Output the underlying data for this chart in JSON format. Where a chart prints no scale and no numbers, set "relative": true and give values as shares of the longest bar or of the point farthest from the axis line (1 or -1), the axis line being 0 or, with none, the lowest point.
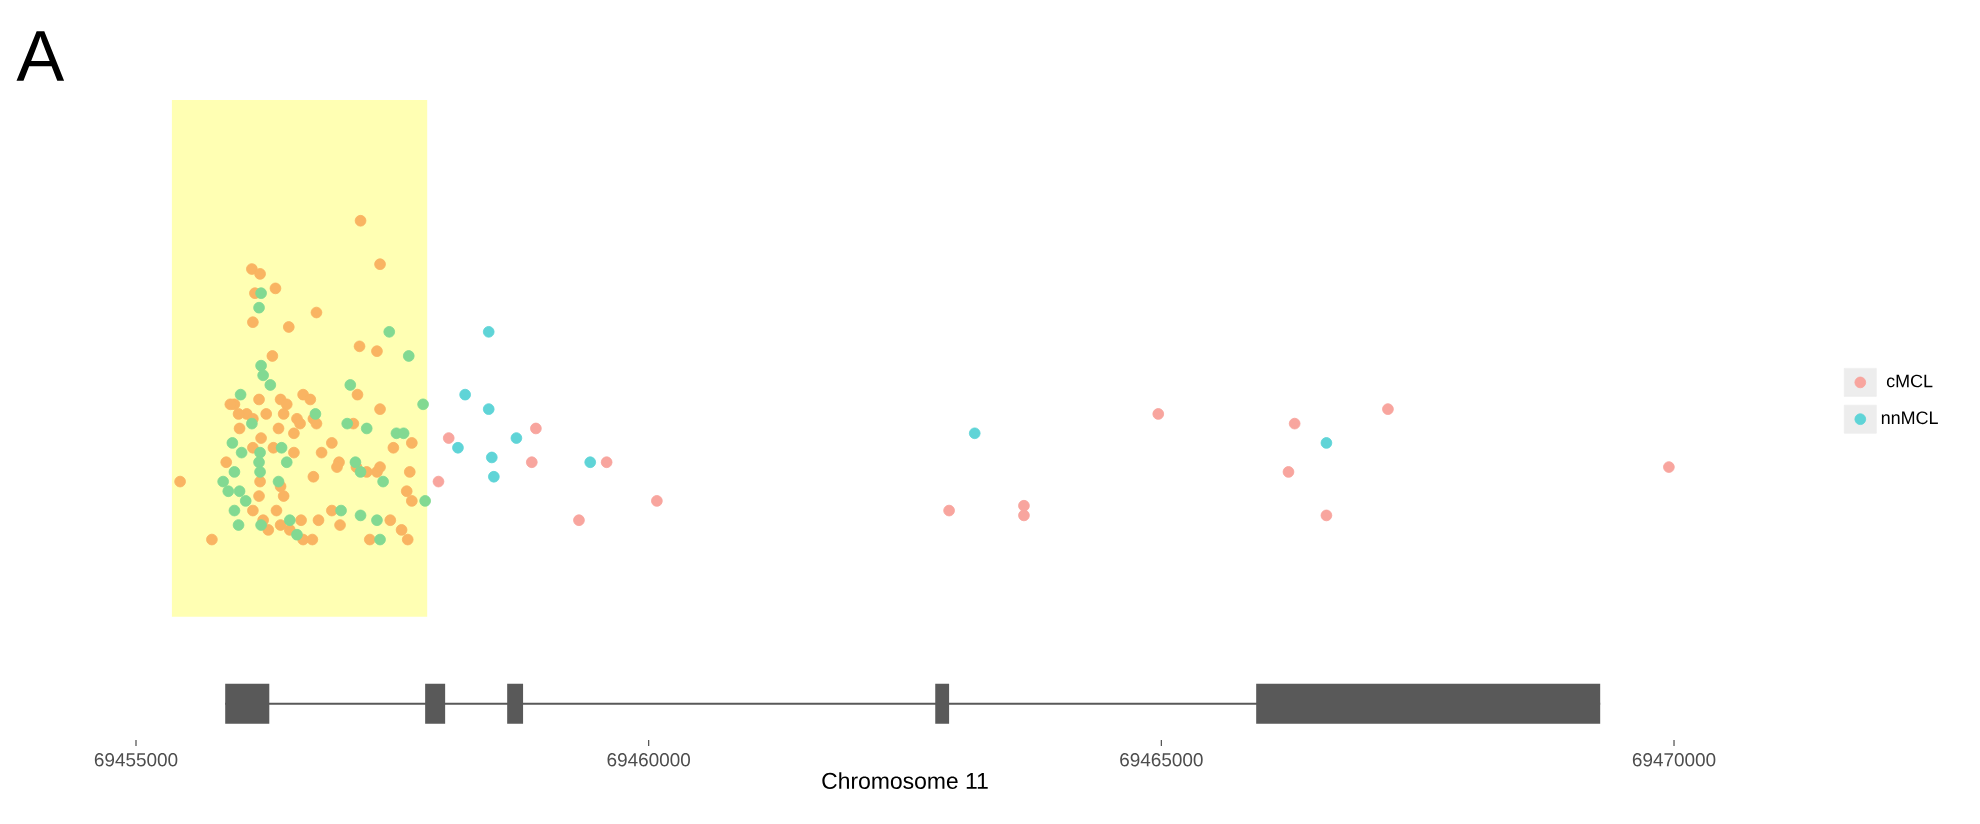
{
  "chart_data": {
    "type": "scatter",
    "relative": true,
    "xlabel": "Chromosome 11",
    "annotations": [
      "A"
    ],
    "xlim": [
      69455000,
      69470000
    ],
    "xticks": [
      69455000,
      69460000,
      69465000,
      69470000
    ],
    "tick_labels": "x",
    "grid": false,
    "legend": "right",
    "marker": "circle",
    "bands": [
      {
        "axis": "x",
        "from": 69455350,
        "to": 69457840,
        "color": "#ffffb3"
      }
    ],
    "series": [
      {
        "color": "#f9b462",
        "x": [
          69457190,
          69457380,
          69456130,
          69456210,
          69456360,
          69456160,
          69456760,
          69456140,
          69456490,
          69457180,
          69457350,
          69456330,
          69455960,
          69456200,
          69456410,
          69456470,
          69456630,
          69456700,
          69456080,
          69456270,
          69456440,
          69456570,
          69456730,
          69457160,
          69457380,
          69456010,
          69456220,
          69456390,
          69456600,
          69456760,
          69457120,
          69457690,
          69457510,
          69456910,
          69455880,
          69456140,
          69456340,
          69456540,
          69456810,
          69456980,
          69457150,
          69457350,
          69457670,
          69455430,
          69456210,
          69456410,
          69456730,
          69456960,
          69457250,
          69457640,
          69457690,
          69456200,
          69456440,
          69456370,
          69456140,
          69456610,
          69456780,
          69456910,
          69456990,
          69457480,
          69456240,
          69456410,
          69456500,
          69456290,
          69456720,
          69456630,
          69455740,
          69457280,
          69457590,
          69457650,
          69455920,
          69456000,
          69456540,
          69457380,
          69456140
        ],
        "values": [
          1.0,
          0.91,
          0.9,
          0.89,
          0.86,
          0.85,
          0.81,
          0.79,
          0.78,
          0.74,
          0.73,
          0.72,
          0.62,
          0.63,
          0.63,
          0.62,
          0.64,
          0.63,
          0.6,
          0.6,
          0.6,
          0.59,
          0.59,
          0.64,
          0.61,
          0.57,
          0.55,
          0.57,
          0.58,
          0.58,
          0.58,
          0.54,
          0.53,
          0.54,
          0.5,
          0.53,
          0.53,
          0.52,
          0.52,
          0.5,
          0.49,
          0.48,
          0.48,
          0.46,
          0.46,
          0.45,
          0.47,
          0.49,
          0.48,
          0.44,
          0.42,
          0.43,
          0.43,
          0.4,
          0.4,
          0.38,
          0.38,
          0.4,
          0.37,
          0.38,
          0.38,
          0.37,
          0.36,
          0.36,
          0.34,
          0.34,
          0.34,
          0.34,
          0.36,
          0.34,
          0.62,
          0.6,
          0.56,
          0.49,
          0.59
        ]
      },
      {
        "color": "#82d992",
        "x": [
          69456220,
          69456200,
          69457470,
          69457660,
          69456220,
          69456240,
          69456310,
          69457090,
          69456020,
          69456750,
          69456130,
          69457060,
          69457250,
          69457540,
          69457610,
          69457800,
          69455940,
          69456030,
          69456210,
          69456420,
          69456200,
          69456470,
          69455960,
          69456210,
          69457140,
          69457190,
          69457410,
          69455850,
          69455900,
          69456010,
          69456390,
          69456070,
          69455960,
          69456500,
          69456000,
          69456220,
          69456570,
          69457000,
          69457190,
          69457350,
          69457380,
          69457820
        ],
        "values": [
          0.85,
          0.82,
          0.77,
          0.72,
          0.7,
          0.68,
          0.66,
          0.66,
          0.64,
          0.6,
          0.58,
          0.58,
          0.57,
          0.56,
          0.56,
          0.62,
          0.54,
          0.52,
          0.52,
          0.53,
          0.5,
          0.5,
          0.48,
          0.48,
          0.5,
          0.48,
          0.46,
          0.46,
          0.44,
          0.44,
          0.46,
          0.42,
          0.4,
          0.38,
          0.37,
          0.37,
          0.35,
          0.4,
          0.39,
          0.38,
          0.34,
          0.42
        ]
      },
      {
        "name": "cMCL",
        "color": "#f8a59e",
        "x": [
          69458050,
          69457950,
          69458900,
          69458860,
          69459590,
          69459320,
          69460080,
          69462930,
          69463660,
          69463660,
          69464970,
          69466300,
          69466240,
          69467210,
          69466610,
          69469950
        ],
        "values": [
          0.55,
          0.46,
          0.57,
          0.5,
          0.5,
          0.38,
          0.42,
          0.4,
          0.41,
          0.39,
          0.6,
          0.58,
          0.48,
          0.61,
          0.39,
          0.49
        ]
      },
      {
        "name": "nnMCL",
        "color": "#5fd4d7",
        "x": [
          69458140,
          69458210,
          69458440,
          69458440,
          69458470,
          69458490,
          69458710,
          69459430,
          69463180,
          69466610
        ],
        "values": [
          0.53,
          0.64,
          0.77,
          0.61,
          0.51,
          0.47,
          0.55,
          0.5,
          0.56,
          0.54
        ]
      },
      {
        "type": "line",
        "marker": "none",
        "color": "#595959",
        "x": [
          69455870,
          69469280
        ],
        "values": [
          0,
          0
        ]
      },
      {
        "type": "line",
        "marker": "none",
        "color": "#595959",
        "x": [
          69455870,
          69456300,
          null,
          69457820,
          69458015,
          null,
          69458620,
          69458775,
          null,
          69462795,
          69462930,
          null,
          69465925,
          69469280
        ],
        "values": [
          0,
          0,
          null,
          0,
          0,
          null,
          0,
          0,
          null,
          0,
          0,
          null,
          0,
          0
        ]
      }
    ]
  }
}
